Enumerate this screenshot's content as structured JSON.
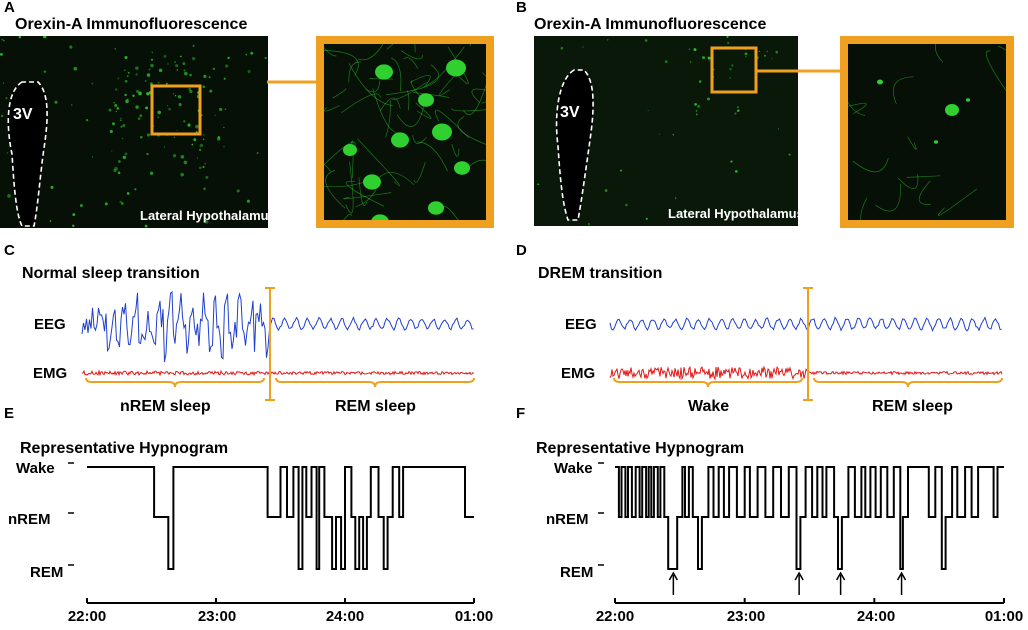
{
  "panels": {
    "A": {
      "letter": "A",
      "title": "Orexin-A Immunofluorescence",
      "ventricle": "3V",
      "region": "Lateral Hypothalamus"
    },
    "B": {
      "letter": "B",
      "title": "Orexin-A Immunofluorescence",
      "ventricle": "3V",
      "region": "Lateral Hypothalamus"
    },
    "C": {
      "letter": "C",
      "title": "Normal sleep transition",
      "eeg": "EEG",
      "emg": "EMG",
      "stage_left": "nREM sleep",
      "stage_right": "REM sleep"
    },
    "D": {
      "letter": "D",
      "title": "DREM transition",
      "eeg": "EEG",
      "emg": "EMG",
      "stage_left": "Wake",
      "stage_right": "REM sleep"
    },
    "E": {
      "letter": "E"
    },
    "F": {
      "letter": "F"
    }
  },
  "colors": {
    "fluorescence": "#2fd02f",
    "highlight": "#f0a020",
    "eeg": "#1f3fd0",
    "emg": "#e01818"
  },
  "chart_data": [
    {
      "type": "line",
      "panel": "E",
      "title": "Representative Hypnogram",
      "y_categories": [
        "Wake",
        "nREM",
        "REM"
      ],
      "x_ticks": [
        "22:00",
        "23:00",
        "24:00",
        "01:00"
      ],
      "x_range_hours": [
        0,
        3
      ],
      "steps": [
        [
          0.0,
          "Wake"
        ],
        [
          0.52,
          "nREM"
        ],
        [
          0.63,
          "REM"
        ],
        [
          0.67,
          "Wake"
        ],
        [
          1.4,
          "nREM"
        ],
        [
          1.5,
          "Wake"
        ],
        [
          1.55,
          "nREM"
        ],
        [
          1.6,
          "Wake"
        ],
        [
          1.64,
          "REM"
        ],
        [
          1.67,
          "Wake"
        ],
        [
          1.7,
          "nREM"
        ],
        [
          1.74,
          "Wake"
        ],
        [
          1.78,
          "REM"
        ],
        [
          1.8,
          "Wake"
        ],
        [
          1.84,
          "nREM"
        ],
        [
          1.9,
          "REM"
        ],
        [
          1.93,
          "nREM"
        ],
        [
          1.97,
          "REM"
        ],
        [
          2.0,
          "Wake"
        ],
        [
          2.05,
          "nREM"
        ],
        [
          2.08,
          "REM"
        ],
        [
          2.11,
          "nREM"
        ],
        [
          2.14,
          "REM"
        ],
        [
          2.17,
          "nREM"
        ],
        [
          2.2,
          "Wake"
        ],
        [
          2.26,
          "nREM"
        ],
        [
          2.3,
          "REM"
        ],
        [
          2.33,
          "nREM"
        ],
        [
          2.37,
          "Wake"
        ],
        [
          2.42,
          "nREM"
        ],
        [
          2.45,
          "Wake"
        ],
        [
          2.49,
          "Wake"
        ],
        [
          2.93,
          "nREM"
        ],
        [
          3.0,
          "nREM"
        ]
      ],
      "arrows": []
    },
    {
      "type": "line",
      "panel": "F",
      "title": "Representative Hypnogram",
      "y_categories": [
        "Wake",
        "nREM",
        "REM"
      ],
      "x_ticks": [
        "22:00",
        "23:00",
        "24:00",
        "01:00"
      ],
      "x_range_hours": [
        0,
        3
      ],
      "steps": [
        [
          0.0,
          "Wake"
        ],
        [
          0.03,
          "nREM"
        ],
        [
          0.05,
          "Wake"
        ],
        [
          0.08,
          "nREM"
        ],
        [
          0.1,
          "Wake"
        ],
        [
          0.13,
          "nREM"
        ],
        [
          0.16,
          "Wake"
        ],
        [
          0.19,
          "nREM"
        ],
        [
          0.21,
          "Wake"
        ],
        [
          0.24,
          "nREM"
        ],
        [
          0.26,
          "Wake"
        ],
        [
          0.28,
          "nREM"
        ],
        [
          0.3,
          "Wake"
        ],
        [
          0.33,
          "nREM"
        ],
        [
          0.35,
          "Wake"
        ],
        [
          0.38,
          "nREM"
        ],
        [
          0.41,
          "REM"
        ],
        [
          0.48,
          "nREM"
        ],
        [
          0.52,
          "Wake"
        ],
        [
          0.54,
          "nREM"
        ],
        [
          0.57,
          "Wake"
        ],
        [
          0.6,
          "nREM"
        ],
        [
          0.64,
          "REM"
        ],
        [
          0.67,
          "nREM"
        ],
        [
          0.72,
          "Wake"
        ],
        [
          0.76,
          "nREM"
        ],
        [
          0.8,
          "Wake"
        ],
        [
          0.84,
          "nREM"
        ],
        [
          0.88,
          "Wake"
        ],
        [
          0.94,
          "nREM"
        ],
        [
          1.0,
          "Wake"
        ],
        [
          1.04,
          "nREM"
        ],
        [
          1.1,
          "Wake"
        ],
        [
          1.16,
          "nREM"
        ],
        [
          1.22,
          "Wake"
        ],
        [
          1.28,
          "nREM"
        ],
        [
          1.34,
          "Wake"
        ],
        [
          1.4,
          "REM"
        ],
        [
          1.43,
          "nREM"
        ],
        [
          1.47,
          "Wake"
        ],
        [
          1.52,
          "nREM"
        ],
        [
          1.56,
          "Wake"
        ],
        [
          1.6,
          "nREM"
        ],
        [
          1.63,
          "Wake"
        ],
        [
          1.69,
          "nREM"
        ],
        [
          1.72,
          "REM"
        ],
        [
          1.75,
          "nREM"
        ],
        [
          1.8,
          "Wake"
        ],
        [
          1.85,
          "nREM"
        ],
        [
          1.9,
          "Wake"
        ],
        [
          1.93,
          "nREM"
        ],
        [
          1.97,
          "Wake"
        ],
        [
          2.01,
          "nREM"
        ],
        [
          2.05,
          "Wake"
        ],
        [
          2.1,
          "nREM"
        ],
        [
          2.15,
          "Wake"
        ],
        [
          2.2,
          "REM"
        ],
        [
          2.22,
          "nREM"
        ],
        [
          2.26,
          "Wake"
        ],
        [
          2.42,
          "nREM"
        ],
        [
          2.47,
          "Wake"
        ],
        [
          2.52,
          "REM"
        ],
        [
          2.55,
          "nREM"
        ],
        [
          2.6,
          "Wake"
        ],
        [
          2.64,
          "nREM"
        ],
        [
          2.7,
          "Wake"
        ],
        [
          2.75,
          "nREM"
        ],
        [
          2.8,
          "Wake"
        ],
        [
          2.88,
          "Wake"
        ],
        [
          2.92,
          "nREM"
        ],
        [
          2.95,
          "Wake"
        ],
        [
          3.0,
          "Wake"
        ]
      ],
      "arrows": [
        0.45,
        1.42,
        1.74,
        2.21
      ]
    }
  ]
}
